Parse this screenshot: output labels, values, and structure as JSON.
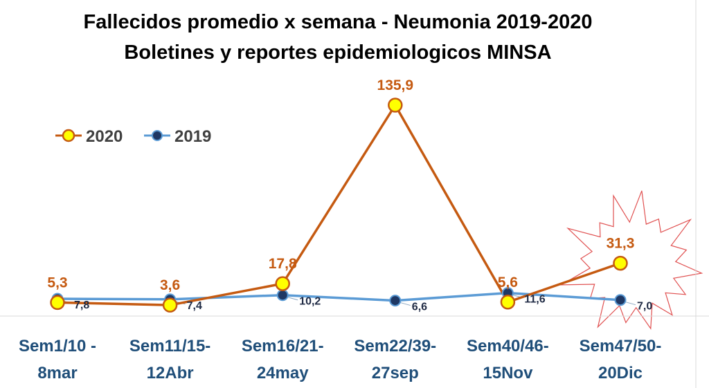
{
  "chart_data": {
    "type": "line",
    "title": "Fallecidos promedio x semana - Neumonia  2019-2020",
    "subtitle": "Boletines y reportes epidemiologicos MINSA",
    "categories": [
      [
        "Sem1/10 -",
        "8mar"
      ],
      [
        "Sem11/15-",
        "12Abr"
      ],
      [
        "Sem16/21-",
        "24may"
      ],
      [
        "Sem22/39-",
        "27sep"
      ],
      [
        "Sem40/46-",
        "15Nov"
      ],
      [
        "Sem47/50-",
        "20Dic"
      ]
    ],
    "series": [
      {
        "name": "2020",
        "values": [
          5.3,
          3.6,
          17.8,
          135.9,
          5.6,
          31.3
        ],
        "labels": [
          "5,3",
          "3,6",
          "17,8",
          "135,9",
          "5,6",
          "31,3"
        ],
        "color": "#c55a11",
        "marker_fill": "#ffff00",
        "marker_stroke": "#c55a11"
      },
      {
        "name": "2019",
        "values": [
          7.8,
          7.4,
          10.2,
          6.6,
          11.6,
          7.0
        ],
        "labels": [
          "7,8",
          "7,4",
          "10,2",
          "6,6",
          "11,6",
          "7,0"
        ],
        "color": "#5b9bd5",
        "marker_fill": "#1f3864",
        "marker_stroke": "#5b9bd5"
      }
    ],
    "ylim": [
      0,
      150
    ],
    "grid": false,
    "legend_position": "top-left",
    "annotation": "starburst around last 2020 point"
  }
}
